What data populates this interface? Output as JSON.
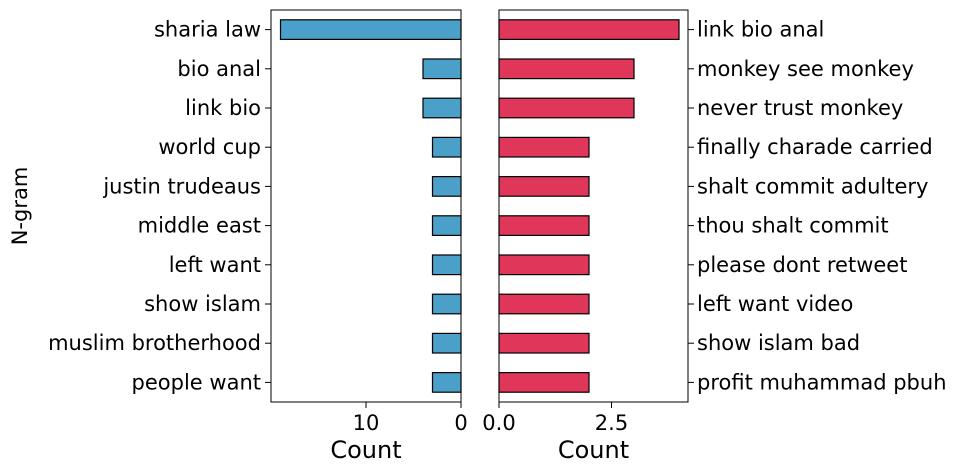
{
  "chart_data": [
    {
      "type": "bar",
      "orientation": "horizontal",
      "x_inverted": true,
      "color": "#4aa0c8",
      "categories": [
        "sharia law",
        "bio anal",
        "link bio",
        "world cup",
        "justin trudeaus",
        "middle east",
        "left want",
        "show islam",
        "muslim brotherhood",
        "people want"
      ],
      "values": [
        19,
        4,
        4,
        3,
        3,
        3,
        3,
        3,
        3,
        3
      ],
      "xlim": [
        0,
        20
      ],
      "xticks": [
        0,
        10
      ],
      "xtick_labels": [
        "0",
        "10"
      ],
      "xlabel": "Count",
      "ylabel": "N-gram",
      "grid": false
    },
    {
      "type": "bar",
      "orientation": "horizontal",
      "color": "#e0365a",
      "categories": [
        "link bio anal",
        "monkey see monkey",
        "never trust monkey",
        "finally charade carried",
        "shalt commit adultery",
        "thou shalt commit",
        "please dont retweet",
        "left want video",
        "show islam bad",
        "profit muhammad pbuh"
      ],
      "values": [
        4,
        3,
        3,
        2,
        2,
        2,
        2,
        2,
        2,
        2
      ],
      "xlim": [
        0,
        4.2
      ],
      "xticks": [
        0,
        2.5
      ],
      "xtick_labels": [
        "0.0",
        "2.5"
      ],
      "xlabel": "Count",
      "ylabel": "",
      "grid": false
    }
  ]
}
